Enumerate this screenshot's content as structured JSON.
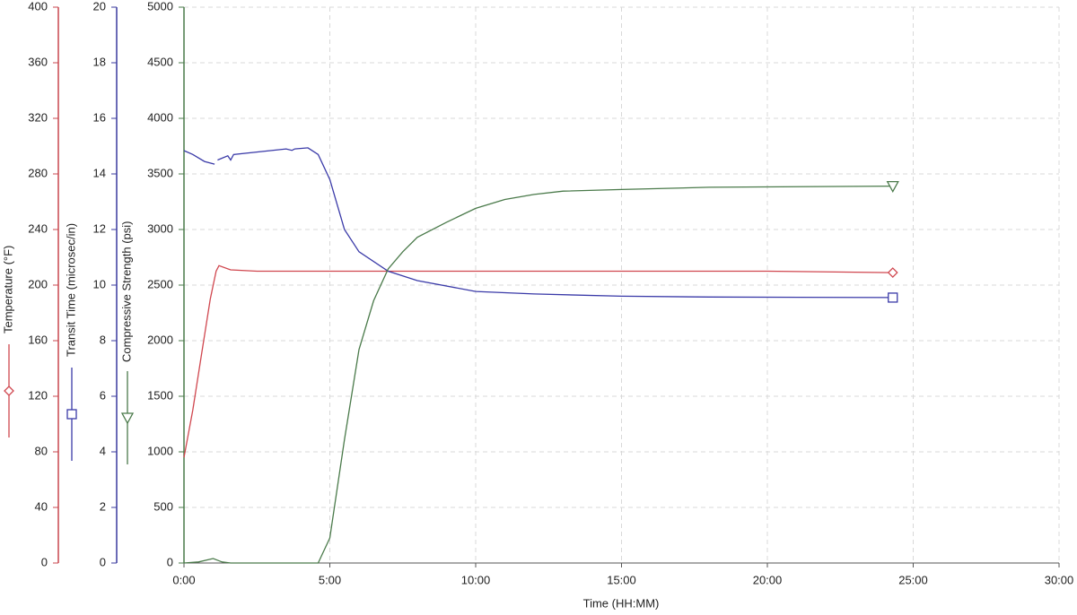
{
  "chart_data": {
    "type": "line",
    "x_label": "Time (HH:MM)",
    "xlim": [
      0,
      30
    ],
    "xticks": [
      {
        "value": 0,
        "label": "0:00"
      },
      {
        "value": 5,
        "label": "5:00"
      },
      {
        "value": 10,
        "label": "10:00"
      },
      {
        "value": 15,
        "label": "15:00"
      },
      {
        "value": 20,
        "label": "20:00"
      },
      {
        "value": 25,
        "label": "25:00"
      },
      {
        "value": 30,
        "label": "30:00"
      }
    ],
    "grid": true,
    "y_axes": [
      {
        "label": "Temperature (°F)",
        "color": "#c8474f",
        "ylim": [
          0,
          400
        ],
        "yticks": [
          0,
          40,
          80,
          120,
          160,
          200,
          240,
          280,
          320,
          360,
          400
        ]
      },
      {
        "label": "Transit Time (microsec/in)",
        "color": "#3a3a9e",
        "ylim": [
          0,
          20
        ],
        "yticks": [
          0,
          2,
          4,
          6,
          8,
          10,
          12,
          14,
          16,
          18,
          20
        ]
      },
      {
        "label": "Compressive Strength (psi)",
        "color": "#4a7a4a",
        "ylim": [
          0,
          5000
        ],
        "yticks": [
          0,
          500,
          1000,
          1500,
          2000,
          2500,
          3000,
          3500,
          4000,
          4500,
          5000
        ]
      }
    ],
    "series": [
      {
        "name": "Temperature (°F)",
        "axis": 0,
        "color": "#d0474f",
        "marker": "diamond",
        "x": [
          0,
          0.3,
          0.6,
          0.9,
          1.1,
          1.2,
          1.6,
          2.5,
          5,
          10,
          15,
          20,
          24.3
        ],
        "values": [
          76,
          110,
          150,
          190,
          210,
          214,
          211,
          210,
          210,
          210,
          210,
          210,
          209
        ]
      },
      {
        "name": "Transit Time (microsec/in)",
        "axis": 1,
        "color": "#3a3aa8",
        "marker": "square",
        "x": [
          0,
          0.3,
          0.7,
          1.05,
          1.1,
          1.15,
          1.5,
          1.6,
          1.7,
          3.5,
          3.7,
          3.8,
          4.25,
          4.6,
          5,
          5.5,
          6,
          7,
          8,
          10,
          12,
          15,
          18,
          24.3
        ],
        "values": [
          14.84,
          14.7,
          14.45,
          14.35,
          null,
          14.5,
          14.65,
          14.5,
          14.7,
          14.9,
          14.85,
          14.9,
          14.94,
          14.7,
          13.8,
          12.0,
          11.2,
          10.5,
          10.16,
          9.77,
          9.68,
          9.6,
          9.57,
          9.55
        ]
      },
      {
        "name": "Compressive Strength (psi)",
        "axis": 2,
        "color": "#4a7a4a",
        "marker": "triangle",
        "x": [
          0,
          0.5,
          1.0,
          1.3,
          1.6,
          4.6,
          5,
          5.5,
          6,
          6.5,
          7,
          7.5,
          8,
          9,
          10,
          11,
          12,
          13,
          15,
          18,
          24.3
        ],
        "values": [
          0,
          10,
          40,
          10,
          0,
          0,
          225,
          1110,
          1920,
          2360,
          2645,
          2800,
          2930,
          3065,
          3190,
          3270,
          3315,
          3345,
          3360,
          3380,
          3390
        ]
      }
    ]
  }
}
